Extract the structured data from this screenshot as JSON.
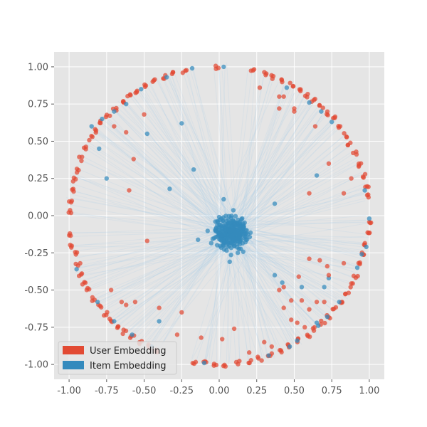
{
  "chart_data": {
    "type": "scatter",
    "title": "",
    "xlabel": "",
    "ylabel": "",
    "xlim": [
      -1.1,
      1.1
    ],
    "ylim": [
      -1.1,
      1.1
    ],
    "xticks": [
      "-1.00",
      "-0.75",
      "-0.50",
      "-0.25",
      "0.00",
      "0.25",
      "0.50",
      "0.75",
      "1.00"
    ],
    "yticks": [
      "1.00",
      "0.75",
      "0.50",
      "0.25",
      "0.00",
      "-0.25",
      "-0.50",
      "-0.75",
      "-1.00"
    ],
    "grid": true,
    "legend_position": "lower-left",
    "colors": {
      "user": "#E24A33",
      "item": "#348ABD",
      "background": "#E5E5E5",
      "grid": "#FFFFFF",
      "lines": "#A6CCEA"
    },
    "series": [
      {
        "name": "User Embedding",
        "ring_points": [
          [
            -0.99,
            -0.13
          ],
          [
            -0.98,
            -0.2
          ],
          [
            -0.96,
            -0.26
          ],
          [
            -0.94,
            -0.33
          ],
          [
            -0.92,
            -0.4
          ],
          [
            -0.9,
            -0.45
          ],
          [
            -0.87,
            -0.5
          ],
          [
            -0.84,
            -0.56
          ],
          [
            -0.8,
            -0.61
          ],
          [
            -0.76,
            -0.66
          ],
          [
            -0.72,
            -0.7
          ],
          [
            -0.68,
            -0.74
          ],
          [
            -0.63,
            -0.78
          ],
          [
            -0.58,
            -0.82
          ],
          [
            -0.52,
            -0.85
          ],
          [
            -0.47,
            -0.88
          ],
          [
            -0.41,
            -0.91
          ],
          [
            -0.97,
            0.24
          ],
          [
            -0.98,
            0.17
          ],
          [
            -0.99,
            0.1
          ],
          [
            -1.0,
            0.03
          ],
          [
            -0.95,
            0.3
          ],
          [
            -0.92,
            0.38
          ],
          [
            -0.89,
            0.46
          ],
          [
            -0.86,
            0.52
          ],
          [
            -0.82,
            0.57
          ],
          [
            -0.78,
            0.63
          ],
          [
            -0.74,
            0.67
          ],
          [
            -0.7,
            0.72
          ],
          [
            -0.65,
            0.76
          ],
          [
            -0.6,
            0.8
          ],
          [
            -0.55,
            0.84
          ],
          [
            -0.49,
            0.87
          ],
          [
            -0.43,
            0.9
          ],
          [
            -0.37,
            0.93
          ],
          [
            -0.3,
            0.95
          ],
          [
            -0.23,
            0.97
          ],
          [
            -0.01,
            1.0
          ],
          [
            0.22,
            0.98
          ],
          [
            0.3,
            0.95
          ],
          [
            0.36,
            0.93
          ],
          [
            0.42,
            0.91
          ],
          [
            0.48,
            0.88
          ],
          [
            0.53,
            0.85
          ],
          [
            0.58,
            0.81
          ],
          [
            0.63,
            0.78
          ],
          [
            0.68,
            0.73
          ],
          [
            0.72,
            0.69
          ],
          [
            0.76,
            0.65
          ],
          [
            0.8,
            0.6
          ],
          [
            0.84,
            0.54
          ],
          [
            0.87,
            0.48
          ],
          [
            0.9,
            0.42
          ],
          [
            0.93,
            0.35
          ],
          [
            0.96,
            0.27
          ],
          [
            0.98,
            0.2
          ],
          [
            0.99,
            0.13
          ],
          [
            1.0,
            -0.05
          ],
          [
            0.99,
            -0.12
          ],
          [
            0.98,
            -0.19
          ],
          [
            0.96,
            -0.26
          ],
          [
            0.94,
            -0.33
          ],
          [
            0.91,
            -0.41
          ],
          [
            0.88,
            -0.47
          ],
          [
            0.85,
            -0.53
          ],
          [
            0.81,
            -0.58
          ],
          [
            0.77,
            -0.63
          ],
          [
            0.73,
            -0.68
          ],
          [
            0.69,
            -0.72
          ],
          [
            0.64,
            -0.76
          ],
          [
            0.59,
            -0.8
          ],
          [
            0.53,
            -0.84
          ],
          [
            0.47,
            -0.88
          ],
          [
            0.41,
            -0.91
          ],
          [
            0.34,
            -0.94
          ],
          [
            0.27,
            -0.96
          ],
          [
            0.2,
            -0.98
          ],
          [
            0.12,
            -0.99
          ],
          [
            0.04,
            -1.0
          ],
          [
            -0.03,
            -1.0
          ],
          [
            -0.1,
            -0.99
          ],
          [
            -0.17,
            -0.98
          ]
        ],
        "inner_points": [
          [
            -0.7,
            0.6
          ],
          [
            -0.62,
            0.56
          ],
          [
            -0.5,
            0.68
          ],
          [
            -0.57,
            0.38
          ],
          [
            -0.6,
            0.17
          ],
          [
            -0.48,
            -0.17
          ],
          [
            -0.72,
            -0.5
          ],
          [
            -0.65,
            -0.58
          ],
          [
            -0.62,
            -0.6
          ],
          [
            -0.56,
            -0.58
          ],
          [
            -0.4,
            -0.62
          ],
          [
            -0.25,
            -0.65
          ],
          [
            -0.28,
            -0.8
          ],
          [
            -0.12,
            -0.82
          ],
          [
            0.02,
            -0.83
          ],
          [
            0.1,
            -0.76
          ],
          [
            0.27,
            0.86
          ],
          [
            0.4,
            0.8
          ],
          [
            0.43,
            0.8
          ],
          [
            0.4,
            0.72
          ],
          [
            0.5,
            0.72
          ],
          [
            0.5,
            0.7
          ],
          [
            0.64,
            0.6
          ],
          [
            0.73,
            0.35
          ],
          [
            0.6,
            0.15
          ],
          [
            0.83,
            0.15
          ],
          [
            0.88,
            0.25
          ],
          [
            0.93,
            0.33
          ],
          [
            0.6,
            -0.29
          ],
          [
            0.67,
            -0.3
          ],
          [
            0.72,
            -0.34
          ],
          [
            0.73,
            -0.4
          ],
          [
            0.83,
            -0.32
          ],
          [
            0.53,
            -0.41
          ],
          [
            0.43,
            -0.48
          ],
          [
            0.4,
            -0.5
          ],
          [
            0.48,
            -0.57
          ],
          [
            0.55,
            -0.57
          ],
          [
            0.6,
            -0.63
          ],
          [
            0.65,
            -0.58
          ],
          [
            0.7,
            -0.58
          ],
          [
            0.43,
            -0.62
          ],
          [
            0.48,
            -0.7
          ],
          [
            0.52,
            -0.72
          ],
          [
            0.57,
            -0.75
          ],
          [
            0.3,
            -0.85
          ],
          [
            0.35,
            -0.88
          ],
          [
            0.2,
            -0.92
          ]
        ]
      },
      {
        "name": "Item Embedding",
        "ring_points": [
          [
            -0.85,
            0.6
          ],
          [
            -0.78,
            0.65
          ],
          [
            -0.7,
            0.7
          ],
          [
            -0.62,
            0.75
          ],
          [
            -0.52,
            0.85
          ],
          [
            -0.35,
            0.93
          ],
          [
            -0.18,
            0.99
          ],
          [
            0.03,
            1.0
          ],
          [
            0.45,
            0.86
          ],
          [
            0.6,
            0.76
          ],
          [
            0.68,
            0.7
          ],
          [
            0.75,
            0.63
          ],
          [
            0.97,
            0.17
          ],
          [
            1.0,
            -0.02
          ],
          [
            0.98,
            -0.21
          ],
          [
            0.95,
            -0.26
          ],
          [
            0.92,
            -0.35
          ],
          [
            0.8,
            -0.58
          ],
          [
            0.72,
            -0.68
          ],
          [
            0.66,
            -0.74
          ],
          [
            0.52,
            -0.84
          ],
          [
            0.47,
            -0.88
          ],
          [
            0.33,
            -0.94
          ],
          [
            -0.1,
            -0.99
          ],
          [
            -0.45,
            -0.88
          ],
          [
            -0.58,
            -0.8
          ],
          [
            -0.7,
            -0.71
          ],
          [
            -0.81,
            -0.58
          ],
          [
            -0.95,
            -0.36
          ]
        ],
        "inner_points": [
          [
            -0.8,
            0.45
          ],
          [
            -0.75,
            0.25
          ],
          [
            -0.48,
            0.55
          ],
          [
            -0.25,
            0.62
          ],
          [
            -0.17,
            0.31
          ],
          [
            -0.33,
            0.18
          ],
          [
            0.03,
            0.11
          ],
          [
            0.37,
            0.08
          ],
          [
            0.65,
            0.27
          ],
          [
            0.37,
            -0.4
          ],
          [
            0.42,
            -0.45
          ],
          [
            0.55,
            -0.48
          ],
          [
            0.7,
            -0.48
          ],
          [
            0.73,
            -0.42
          ],
          [
            0.65,
            -0.72
          ],
          [
            -0.4,
            -0.71
          ],
          [
            0.07,
            -0.31
          ]
        ],
        "cluster": {
          "center": [
            0.08,
            -0.12
          ],
          "spread": [
            0.1,
            0.09
          ],
          "count": 320
        }
      }
    ]
  },
  "legend": {
    "user_label": "User Embedding",
    "item_label": "Item Embedding"
  }
}
